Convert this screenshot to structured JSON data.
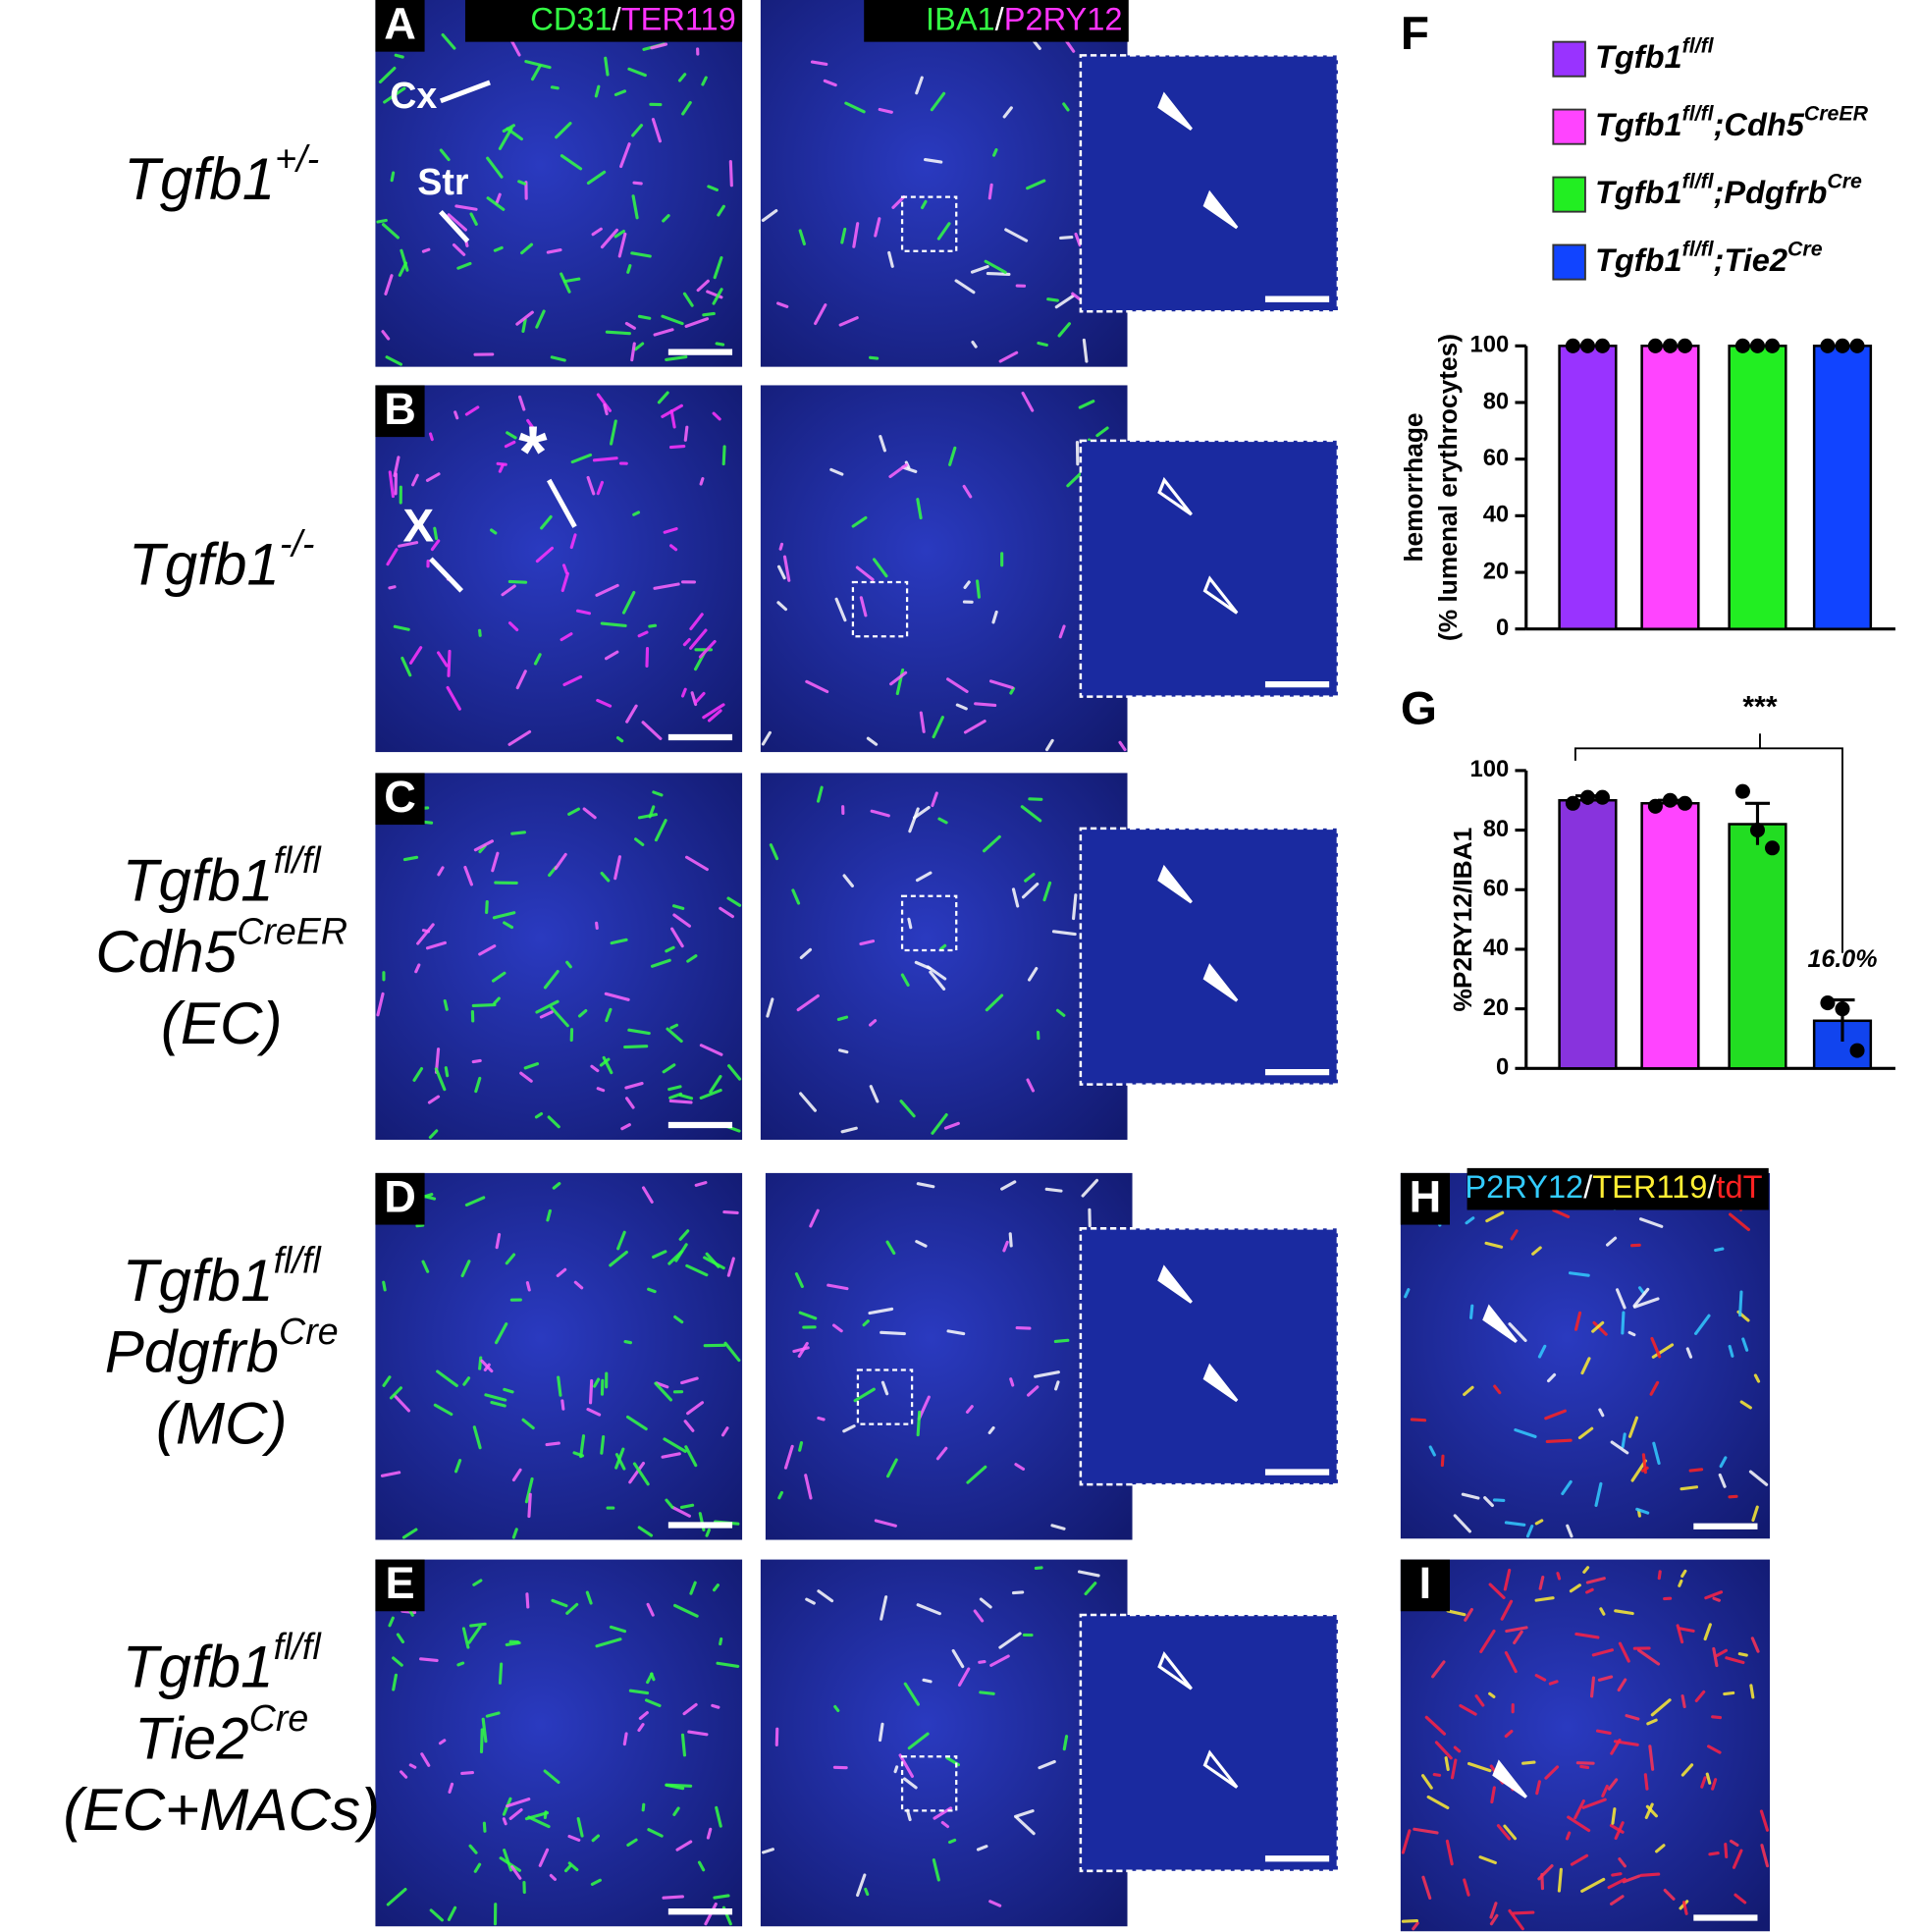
{
  "panel_letters": [
    "A",
    "B",
    "C",
    "D",
    "E",
    "F",
    "G",
    "H",
    "I"
  ],
  "row_labels": [
    [
      [
        "Tgfb1",
        "+/-"
      ]
    ],
    [
      [
        "Tgfb1",
        "-/-"
      ]
    ],
    [
      [
        "Tgfb1",
        "fl/fl"
      ],
      [
        "Cdh5",
        "CreER"
      ],
      [
        "(EC)"
      ]
    ],
    [
      [
        "Tgfb1",
        "fl/fl"
      ],
      [
        "Pdgfrb",
        "Cre"
      ],
      [
        "(MC)"
      ]
    ],
    [
      [
        "Tgfb1",
        "fl/fl"
      ],
      [
        "Tie2",
        "Cre"
      ],
      [
        "(EC+MACs)"
      ]
    ]
  ],
  "stain_labels": [
    [
      {
        "text": "CD31",
        "color": "#33ff44"
      },
      {
        "text": "/",
        "color": "#ffffff"
      },
      {
        "text": "TER119",
        "color": "#ff33ff"
      }
    ],
    [
      {
        "text": "IBA1",
        "color": "#33ff44"
      },
      {
        "text": "/",
        "color": "#ffffff"
      },
      {
        "text": "P2RY12",
        "color": "#ff33ff"
      }
    ],
    [
      {
        "text": "P2RY12",
        "color": "#33ccff"
      },
      {
        "text": "/",
        "color": "#ffffff"
      },
      {
        "text": "TER119",
        "color": "#ffee33"
      },
      {
        "text": "/",
        "color": "#ffffff"
      },
      {
        "text": "tdT",
        "color": "#ff2222"
      }
    ]
  ],
  "region_labels": [
    "Cx",
    "Str",
    "X",
    "*"
  ],
  "chart_data": [
    {
      "type": "bar",
      "ylabel": [
        "hemorrhage",
        "(% lumenal erythrocytes)"
      ],
      "ylim": [
        0,
        100
      ],
      "yticks": [
        0,
        20,
        40,
        60,
        80,
        100
      ],
      "series": [
        {
          "name": [
            "Tgfb1",
            "fl/fl"
          ],
          "color": "#9933ff",
          "values": [
            100
          ],
          "points": [
            100,
            100,
            100
          ]
        },
        {
          "name": [
            "Tgfb1",
            "fl/fl",
            ";Cdh5",
            "CreER"
          ],
          "color": "#ff44ff",
          "values": [
            100
          ],
          "points": [
            100,
            100,
            100
          ]
        },
        {
          "name": [
            "Tgfb1",
            "fl/fl",
            ";Pdgfrb",
            "Cre"
          ],
          "color": "#22ee22",
          "values": [
            100
          ],
          "points": [
            100,
            100,
            100
          ]
        },
        {
          "name": [
            "Tgfb1",
            "fl/fl",
            ";Tie2",
            "Cre"
          ],
          "color": "#1144ff",
          "values": [
            100
          ],
          "points": [
            100,
            100,
            100
          ]
        }
      ]
    },
    {
      "type": "bar",
      "ylabel": "%P2RY12/IBA1",
      "ylim": [
        0,
        100
      ],
      "yticks": [
        0,
        20,
        40,
        60,
        80,
        100
      ],
      "significance": "***",
      "series": [
        {
          "color": "#8833dd",
          "values": [
            90
          ],
          "errors": [
            1.5
          ],
          "points": [
            89,
            91,
            91
          ]
        },
        {
          "color": "#ff44ff",
          "values": [
            89
          ],
          "errors": [
            1
          ],
          "points": [
            88,
            90,
            89
          ]
        },
        {
          "color": "#22dd22",
          "values": [
            82
          ],
          "errors": [
            7
          ],
          "points": [
            93,
            80,
            74
          ]
        },
        {
          "color": "#1144ee",
          "values": [
            16
          ],
          "value_labels": [
            "16.0%"
          ],
          "errors": [
            7
          ],
          "points": [
            22,
            20,
            6
          ]
        }
      ]
    }
  ]
}
